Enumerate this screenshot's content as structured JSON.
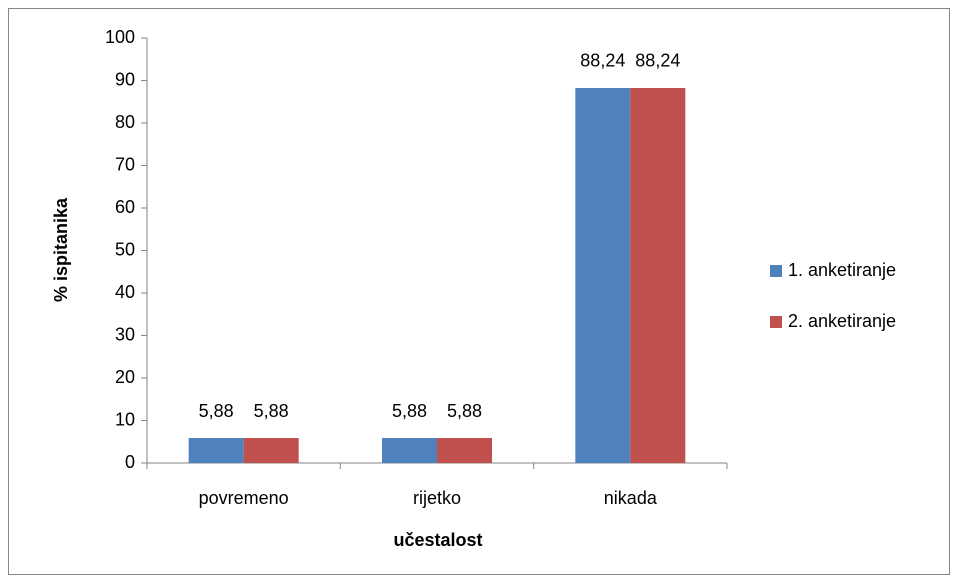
{
  "chart_data": {
    "type": "bar",
    "x_label": "učestalost",
    "y_label": "% ispitanika",
    "categories": [
      "povremeno",
      "rijetko",
      "nikada"
    ],
    "series": [
      {
        "name": "1. anketiranje",
        "color": "#4f81bd",
        "values": [
          5.88,
          5.88,
          88.24
        ],
        "value_labels": [
          "5,88",
          "5,88",
          "88,24"
        ]
      },
      {
        "name": "2. anketiranje",
        "color": "#c0504d",
        "values": [
          5.88,
          5.88,
          88.24
        ],
        "value_labels": [
          "5,88",
          "5,88",
          "88,24"
        ]
      }
    ],
    "ylim": [
      0,
      100
    ],
    "yticks": [
      0,
      10,
      20,
      30,
      40,
      50,
      60,
      70,
      80,
      90,
      100
    ],
    "grid": false,
    "legend": "right"
  }
}
